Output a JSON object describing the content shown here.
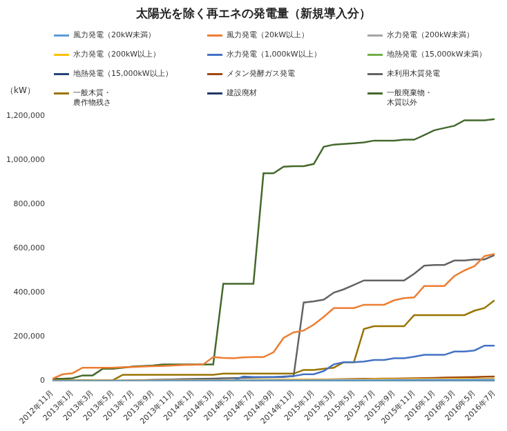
{
  "chart_data": {
    "type": "line",
    "title": "太陽光を除く再エネの発電量（新規導入分）",
    "y_label": "（kW）",
    "categories": [
      "2012年11月",
      null,
      "2013年1月",
      null,
      "2013年3月",
      null,
      "2013年5月",
      null,
      "2013年7月",
      null,
      "2013年9月",
      null,
      "2013年11月",
      null,
      "2014年1月",
      null,
      "2014年3月",
      null,
      "2014年5月",
      null,
      "2014年7月",
      null,
      "2014年9月",
      null,
      "2014年11月",
      null,
      "2015年1月",
      null,
      "2015年3月",
      null,
      "2015年5月",
      null,
      "2015年7月",
      null,
      "2015年9月",
      null,
      "2015年11月",
      null,
      "2016年1月",
      null,
      "2016年3月",
      null,
      "2016年5月",
      null,
      "2016年7月"
    ],
    "series": [
      {
        "name": "風力発電（20kW未満）",
        "color": "#5b9bd5",
        "values": [
          0,
          0,
          0,
          0,
          0,
          0,
          0,
          0,
          0,
          0,
          500,
          500,
          500,
          500,
          500,
          500,
          1000,
          1000,
          1000,
          1000,
          1000,
          1000,
          1000,
          1000,
          1500,
          1500,
          1500,
          1500,
          2000,
          2000,
          2000,
          2000,
          2000,
          2000,
          2500,
          2500,
          2500,
          2500,
          3000,
          3000,
          3000,
          3000,
          3000,
          3500,
          3500
        ]
      },
      {
        "name": "風力発電（20kW以上）",
        "color": "#ed7d31",
        "values": [
          10000,
          30000,
          35000,
          60000,
          60000,
          60000,
          60000,
          62000,
          63000,
          65000,
          67000,
          68000,
          70000,
          72000,
          73000,
          75000,
          108000,
          104000,
          103000,
          107000,
          108000,
          108000,
          130000,
          195000,
          220000,
          228000,
          255000,
          290000,
          330000,
          330000,
          330000,
          345000,
          345000,
          345000,
          365000,
          375000,
          378000,
          430000,
          430000,
          430000,
          475000,
          500000,
          520000,
          565000,
          575000
        ]
      },
      {
        "name": "水力発電（200kW未満）",
        "color": "#a5a5a5",
        "values": [
          0,
          0,
          500,
          500,
          500,
          1000,
          1000,
          1000,
          1500,
          1500,
          1500,
          2000,
          2000,
          2000,
          2500,
          2500,
          2500,
          3000,
          3000,
          3000,
          3500,
          3500,
          3500,
          4000,
          4000,
          4000,
          4500,
          4500,
          5000,
          5000,
          5000,
          5500,
          5500,
          5500,
          6000,
          6000,
          6000,
          6500,
          6500,
          7000,
          7000,
          7000,
          7500,
          7500,
          8000
        ]
      },
      {
        "name": "水力発電（200kW以上）",
        "color": "#ffc000",
        "values": [
          0,
          0,
          0,
          0,
          1000,
          1000,
          1000,
          1000,
          2000,
          2000,
          2000,
          2000,
          3000,
          3000,
          3000,
          3000,
          4000,
          4000,
          4000,
          4000,
          5000,
          5000,
          5000,
          5000,
          6000,
          6000,
          6000,
          6000,
          7000,
          7000,
          7000,
          7000,
          8000,
          8000,
          8000,
          8000,
          9000,
          9000,
          9000,
          9000,
          10000,
          10000,
          10000,
          10000,
          11000
        ]
      },
      {
        "name": "水力発電（1,000kW以上）",
        "color": "#4472c4",
        "values": [
          0,
          0,
          0,
          0,
          0,
          0,
          0,
          0,
          1000,
          1000,
          1000,
          2000,
          2000,
          2000,
          2000,
          2000,
          3000,
          3000,
          3000,
          20000,
          18000,
          18000,
          18000,
          20000,
          22000,
          30000,
          30000,
          45000,
          75000,
          85000,
          85000,
          88000,
          95000,
          95000,
          103000,
          103000,
          110000,
          118000,
          118000,
          118000,
          133000,
          133000,
          138000,
          160000,
          160000
        ]
      },
      {
        "name": "地熱発電（15,000kW未満）",
        "color": "#70ad47",
        "values": [
          0,
          0,
          0,
          0,
          0,
          0,
          0,
          0,
          0,
          0,
          0,
          0,
          0,
          0,
          0,
          0,
          0,
          0,
          0,
          500,
          500,
          500,
          500,
          500,
          1000,
          1000,
          1000,
          1000,
          1000,
          1500,
          1500,
          1500,
          1500,
          2000,
          2000,
          2000,
          2000,
          2500,
          2500,
          2500,
          2500,
          3000,
          3000,
          3000,
          3000
        ]
      },
      {
        "name": "地熱発電（15,000kW以上）",
        "color": "#264478",
        "values": [
          0,
          0,
          0,
          0,
          0,
          0,
          0,
          0,
          0,
          0,
          0,
          0,
          0,
          0,
          0,
          0,
          0,
          0,
          0,
          0,
          0,
          0,
          0,
          0,
          0,
          0,
          0,
          0,
          0,
          0,
          0,
          0,
          0,
          0,
          0,
          0,
          0,
          0,
          0,
          0,
          0,
          0,
          0,
          0,
          0
        ]
      },
      {
        "name": "メタン発酵ガス発電",
        "color": "#9e480e",
        "values": [
          0,
          0,
          0,
          0,
          0,
          0,
          500,
          500,
          1000,
          1000,
          1000,
          1500,
          1500,
          2000,
          2000,
          2500,
          2500,
          3000,
          3000,
          3500,
          4000,
          4000,
          4500,
          5000,
          5500,
          6000,
          6500,
          7000,
          7500,
          8000,
          9000,
          9500,
          10000,
          10500,
          11000,
          11500,
          12000,
          13000,
          14000,
          15000,
          16000,
          17000,
          18000,
          19000,
          20000
        ]
      },
      {
        "name": "未利用木質発電",
        "color": "#636363",
        "values": [
          0,
          0,
          0,
          0,
          0,
          0,
          1000,
          2000,
          3000,
          4000,
          5000,
          6000,
          7000,
          8000,
          9000,
          10000,
          11000,
          12000,
          13000,
          14000,
          15000,
          16000,
          17000,
          18000,
          22000,
          355000,
          360000,
          368000,
          400000,
          415000,
          435000,
          455000,
          455000,
          455000,
          455000,
          455000,
          485000,
          522000,
          525000,
          525000,
          545000,
          545000,
          550000,
          550000,
          570000
        ]
      },
      {
        "name": "一般木質・\n農作物残さ",
        "color": "#997300",
        "values": [
          3000,
          3000,
          3000,
          3000,
          3000,
          3000,
          3000,
          28000,
          28000,
          28000,
          28000,
          28000,
          28000,
          28000,
          28000,
          28000,
          28000,
          33000,
          33000,
          33000,
          33000,
          33000,
          33000,
          33000,
          33000,
          50000,
          50000,
          55000,
          60000,
          85000,
          85000,
          235000,
          248000,
          248000,
          248000,
          248000,
          298000,
          298000,
          298000,
          298000,
          298000,
          298000,
          318000,
          330000,
          365000
        ]
      },
      {
        "name": "建設廃材",
        "color": "#1f3864",
        "values": [
          0,
          0,
          0,
          0,
          0,
          0,
          0,
          0,
          0,
          0,
          0,
          0,
          0,
          0,
          0,
          0,
          0,
          0,
          0,
          0,
          0,
          0,
          0,
          0,
          0,
          1000,
          1000,
          1000,
          1000,
          1000,
          1000,
          1000,
          1000,
          2000,
          2000,
          2000,
          2000,
          2000,
          2000,
          2000,
          2000,
          2000,
          2000,
          2000,
          2000
        ]
      },
      {
        "name": "一般廃棄物・\n木質以外",
        "color": "#43682b",
        "values": [
          10000,
          10000,
          12000,
          25000,
          25000,
          55000,
          55000,
          60000,
          65000,
          68000,
          70000,
          75000,
          75000,
          75000,
          75000,
          75000,
          75000,
          440000,
          440000,
          440000,
          440000,
          940000,
          940000,
          970000,
          972000,
          972000,
          982000,
          1060000,
          1070000,
          1073000,
          1076000,
          1080000,
          1088000,
          1088000,
          1088000,
          1092000,
          1092000,
          1113000,
          1135000,
          1145000,
          1155000,
          1180000,
          1180000,
          1180000,
          1185000
        ]
      }
    ],
    "ylim": [
      0,
      1200000
    ],
    "yticks": [
      0,
      {
        "value": 200000,
        "label": "200,000"
      },
      {
        "value": 400000,
        "label": "400,000"
      },
      {
        "value": 600000,
        "label": "600,000"
      },
      {
        "value": 800000,
        "label": "800,000"
      },
      {
        "value": 1000000,
        "label": "1,000,000"
      },
      {
        "value": 1200000,
        "label": "1,200,000"
      }
    ],
    "grid": false,
    "legend": "top"
  }
}
